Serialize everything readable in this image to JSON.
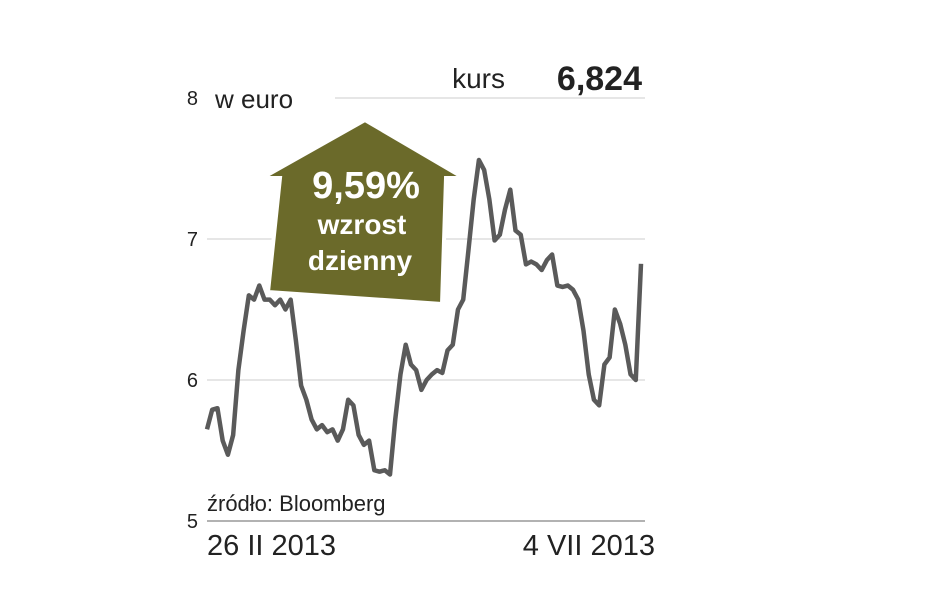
{
  "chart_data": {
    "type": "line",
    "y_label": "w euro",
    "kurs_label": "kurs",
    "kurs_value": "6,824",
    "badge": {
      "percent": "9,59%",
      "line1": "wzrost",
      "line2": "dzienny"
    },
    "source": "źródło: Bloomberg",
    "categories": [
      "26 II 2013",
      null,
      null,
      null,
      null,
      null,
      null,
      null,
      null,
      null,
      null,
      null,
      null,
      null,
      null,
      null,
      null,
      null,
      null,
      null,
      null,
      null,
      null,
      null,
      null,
      null,
      null,
      null,
      null,
      null,
      null,
      null,
      null,
      null,
      null,
      null,
      null,
      null,
      null,
      null,
      null,
      null,
      null,
      null,
      null,
      null,
      null,
      null,
      null,
      null,
      null,
      null,
      null,
      null,
      null,
      null,
      null,
      null,
      null,
      null,
      null,
      null,
      null,
      null,
      null,
      null,
      null,
      null,
      null,
      null,
      null,
      null,
      null,
      null,
      null,
      null,
      null,
      null,
      null,
      null,
      null,
      null,
      null,
      "4 VII 2013"
    ],
    "series": [
      {
        "name": "kurs",
        "color": "#5a5a5a",
        "values": [
          5.65,
          5.79,
          5.8,
          5.57,
          5.47,
          5.61,
          6.07,
          6.35,
          6.6,
          6.57,
          6.67,
          6.57,
          6.57,
          6.53,
          6.57,
          6.5,
          6.57,
          6.28,
          5.96,
          5.86,
          5.72,
          5.65,
          5.68,
          5.63,
          5.65,
          5.57,
          5.65,
          5.86,
          5.82,
          5.61,
          5.54,
          5.57,
          5.36,
          5.35,
          5.36,
          5.33,
          5.72,
          6.04,
          6.25,
          6.11,
          6.07,
          5.93,
          6.0,
          6.04,
          6.07,
          6.05,
          6.21,
          6.25,
          6.5,
          6.57,
          6.92,
          7.28,
          7.56,
          7.49,
          7.28,
          6.99,
          7.03,
          7.21,
          7.35,
          7.06,
          7.03,
          6.82,
          6.84,
          6.82,
          6.78,
          6.85,
          6.89,
          6.67,
          6.66,
          6.67,
          6.64,
          6.57,
          6.35,
          6.04,
          5.86,
          5.82,
          6.11,
          6.16,
          6.5,
          6.4,
          6.25,
          6.04,
          6.0,
          6.824
        ]
      }
    ],
    "ylim": [
      5,
      8
    ],
    "yticks": [
      5,
      6,
      7,
      8
    ],
    "grid": true
  }
}
